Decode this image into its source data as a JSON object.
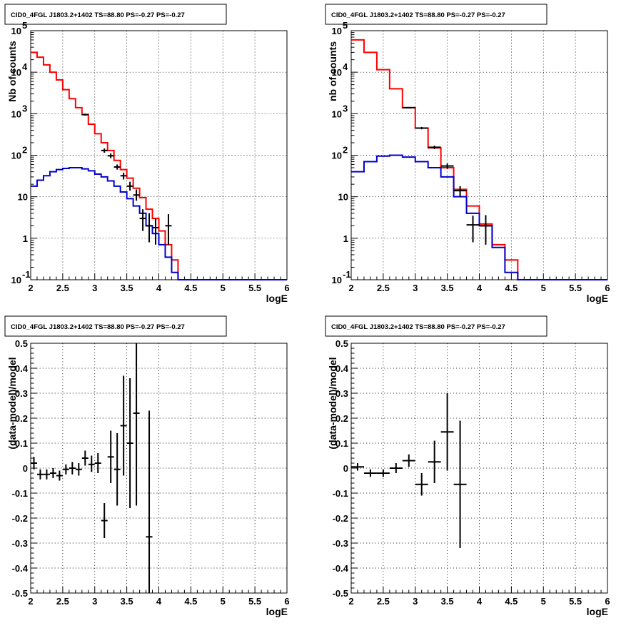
{
  "panels": [
    {
      "title": "CID0_4FGL J1803.2+1402 TS=88.80 PS=-0.27 PS=-0.27",
      "xlabel": "logE",
      "ylabel": "Nb of counts"
    },
    {
      "title": "CID0_4FGL J1803.2+1402 TS=88.80 PS=-0.27 PS=-0.27",
      "xlabel": "logE",
      "ylabel": "nb of counts"
    },
    {
      "title": "CID0_4FGL J1803.2+1402 TS=88.80 PS=-0.27 PS=-0.27",
      "xlabel": "logE",
      "ylabel": "(data-model)/model"
    },
    {
      "title": "CID0_4FGL J1803.2+1402 TS=88.80 PS=-0.27 PS=-0.27",
      "xlabel": "logE",
      "ylabel": "(data-model)/model"
    }
  ],
  "chart_data": [
    {
      "type": "line",
      "title": "CID0_4FGL J1803.2+1402 TS=88.80 PS=-0.27 PS=-0.27",
      "xlabel": "logE",
      "ylabel": "Nb of counts",
      "xlim": [
        2,
        6
      ],
      "ylim": [
        0.1,
        100000
      ],
      "yscale": "log",
      "grid": true,
      "x_ticks": [
        "2",
        "2.5",
        "3",
        "3.5",
        "4",
        "4.5",
        "5",
        "5.5",
        "6"
      ],
      "y_ticks": [
        "10^-1",
        "1",
        "10",
        "10^2",
        "10^3",
        "10^4",
        "10^5"
      ],
      "bin_edges": [
        2.0,
        2.1,
        2.2,
        2.3,
        2.4,
        2.5,
        2.6,
        2.7,
        2.8,
        2.9,
        3.0,
        3.1,
        3.2,
        3.3,
        3.4,
        3.5,
        3.6,
        3.7,
        3.8,
        3.9,
        4.0,
        4.1,
        4.2,
        4.3,
        4.4,
        4.5,
        4.6,
        4.7,
        4.8,
        4.9,
        5.0,
        5.1,
        5.2,
        5.3,
        5.4,
        5.5,
        5.6,
        5.7,
        5.8,
        5.9,
        6.0
      ],
      "series": [
        {
          "color": "#ff0000",
          "values": [
            30000,
            23000,
            15000,
            10000,
            6500,
            3800,
            2300,
            1400,
            950,
            560,
            330,
            200,
            130,
            75,
            45,
            28,
            16,
            9.5,
            5,
            3,
            1.5,
            0.7,
            0.3,
            0.1,
            0.1,
            0.1,
            0.1,
            0.1,
            0.1,
            0.1,
            0.1,
            0.1,
            0.1,
            0.1,
            0.1,
            0.1,
            0.1,
            0.1,
            0.1,
            0.1
          ]
        },
        {
          "color": "#0000cc",
          "values": [
            18,
            25,
            32,
            40,
            45,
            48,
            50,
            50,
            47,
            42,
            35,
            30,
            24,
            18,
            13,
            9,
            6,
            4,
            2,
            1.3,
            0.7,
            0.35,
            0.15,
            0.1,
            0.1,
            0.1,
            0.1,
            0.1,
            0.1,
            0.1,
            0.1,
            0.1,
            0.1,
            0.1,
            0.1,
            0.1,
            0.1,
            0.1,
            0.1,
            0.1
          ]
        }
      ],
      "points": {
        "color": "#000000",
        "x": [
          2.85,
          3.15,
          3.25,
          3.35,
          3.45,
          3.55,
          3.65,
          3.75,
          3.85,
          3.95,
          4.15
        ],
        "y": [
          950,
          130,
          97,
          52,
          32,
          18,
          11,
          3,
          2,
          1.8,
          2
        ],
        "ylow": [
          900,
          115,
          85,
          45,
          26,
          14,
          8,
          1.5,
          0.8,
          0.7,
          0.7
        ],
        "yhigh": [
          1000,
          145,
          110,
          60,
          38,
          23,
          15,
          5,
          4,
          3,
          3.8
        ]
      }
    },
    {
      "type": "line",
      "title": "CID0_4FGL J1803.2+1402 TS=88.80 PS=-0.27 PS=-0.27",
      "xlabel": "logE",
      "ylabel": "nb of counts",
      "xlim": [
        2,
        6
      ],
      "ylim": [
        0.1,
        100000
      ],
      "yscale": "log",
      "grid": true,
      "x_ticks": [
        "2",
        "2.5",
        "3",
        "3.5",
        "4",
        "4.5",
        "5",
        "5.5",
        "6"
      ],
      "y_ticks": [
        "10^-1",
        "1",
        "10",
        "10^2",
        "10^3",
        "10^4",
        "10^5"
      ],
      "bin_edges": [
        2.0,
        2.2,
        2.4,
        2.6,
        2.8,
        3.0,
        3.2,
        3.4,
        3.6,
        3.8,
        4.0,
        4.2,
        4.4,
        4.6,
        4.8,
        5.0,
        5.2,
        5.4,
        5.6,
        5.8,
        6.0
      ],
      "series": [
        {
          "color": "#ff0000",
          "values": [
            60000,
            30000,
            11500,
            4000,
            1400,
            450,
            150,
            50,
            15,
            6,
            2.2,
            0.7,
            0.3,
            0.1,
            0.1,
            0.1,
            0.1,
            0.1,
            0.1,
            0.1
          ]
        },
        {
          "color": "#0000cc",
          "values": [
            40,
            70,
            95,
            100,
            90,
            70,
            50,
            30,
            10,
            4,
            2,
            0.6,
            0.15,
            0.1,
            0.1,
            0.1,
            0.1,
            0.1,
            0.1,
            0.1
          ]
        }
      ],
      "points": {
        "color": "#000000",
        "x": [
          2.9,
          3.1,
          3.3,
          3.5,
          3.7,
          3.9,
          4.1
        ],
        "y": [
          1400,
          450,
          155,
          55,
          14,
          2.1,
          2
        ],
        "ylow": [
          1350,
          420,
          140,
          47,
          10,
          0.8,
          0.7
        ],
        "yhigh": [
          1450,
          480,
          170,
          63,
          18,
          3.5,
          3.6
        ]
      }
    },
    {
      "type": "scatter",
      "title": "CID0_4FGL J1803.2+1402 TS=88.80 PS=-0.27 PS=-0.27",
      "xlabel": "logE",
      "ylabel": "(data-model)/model",
      "xlim": [
        2,
        6
      ],
      "ylim": [
        -0.5,
        0.5
      ],
      "grid": true,
      "x_ticks": [
        "2",
        "2.5",
        "3",
        "3.5",
        "4",
        "4.5",
        "5",
        "5.5",
        "6"
      ],
      "y_ticks": [
        "-0.5",
        "-0.4",
        "-0.3",
        "-0.2",
        "-0.1",
        "0",
        "0.1",
        "0.2",
        "0.3",
        "0.4",
        "0.5"
      ],
      "points": {
        "color": "#000000",
        "xbin": 0.1,
        "x": [
          2.05,
          2.15,
          2.25,
          2.35,
          2.45,
          2.55,
          2.65,
          2.75,
          2.85,
          2.95,
          3.05,
          3.15,
          3.25,
          3.35,
          3.45,
          3.55,
          3.65,
          3.85
        ],
        "y": [
          0.02,
          -0.025,
          -0.025,
          -0.02,
          -0.03,
          -0.005,
          0,
          -0.005,
          0.04,
          0.015,
          0.02,
          -0.21,
          0.045,
          -0.005,
          0.17,
          0.1,
          0.22,
          -0.275
        ],
        "ylow": [
          -0.005,
          -0.045,
          -0.045,
          -0.04,
          -0.05,
          -0.025,
          -0.025,
          -0.03,
          0.01,
          -0.015,
          -0.02,
          -0.28,
          -0.06,
          -0.15,
          -0.03,
          -0.16,
          -0.15,
          -0.5
        ],
        "yhigh": [
          0.045,
          -0.005,
          -0.005,
          0,
          -0.01,
          0.015,
          0.025,
          0.02,
          0.07,
          0.05,
          0.06,
          -0.14,
          0.15,
          0.14,
          0.37,
          0.36,
          0.5,
          0.23
        ]
      }
    },
    {
      "type": "scatter",
      "title": "CID0_4FGL J1803.2+1402 TS=88.80 PS=-0.27 PS=-0.27",
      "xlabel": "logE",
      "ylabel": "(data-model)/model",
      "xlim": [
        2,
        6
      ],
      "ylim": [
        -0.5,
        0.5
      ],
      "grid": true,
      "x_ticks": [
        "2",
        "2.5",
        "3",
        "3.5",
        "4",
        "4.5",
        "5",
        "5.5",
        "6"
      ],
      "y_ticks": [
        "-0.5",
        "-0.4",
        "-0.3",
        "-0.2",
        "-0.1",
        "0",
        "0.1",
        "0.2",
        "0.3",
        "0.4",
        "0.5"
      ],
      "points": {
        "color": "#000000",
        "xbin": 0.2,
        "x": [
          2.1,
          2.3,
          2.5,
          2.7,
          2.9,
          3.1,
          3.3,
          3.5,
          3.7
        ],
        "y": [
          0.005,
          -0.02,
          -0.02,
          0,
          0.03,
          -0.065,
          0.025,
          0.145,
          -0.065
        ],
        "ylow": [
          -0.01,
          -0.035,
          -0.035,
          -0.02,
          0.005,
          -0.11,
          -0.06,
          -0.01,
          -0.32
        ],
        "yhigh": [
          0.02,
          -0.005,
          -0.005,
          0.02,
          0.055,
          -0.02,
          0.11,
          0.3,
          0.19
        ]
      }
    }
  ]
}
